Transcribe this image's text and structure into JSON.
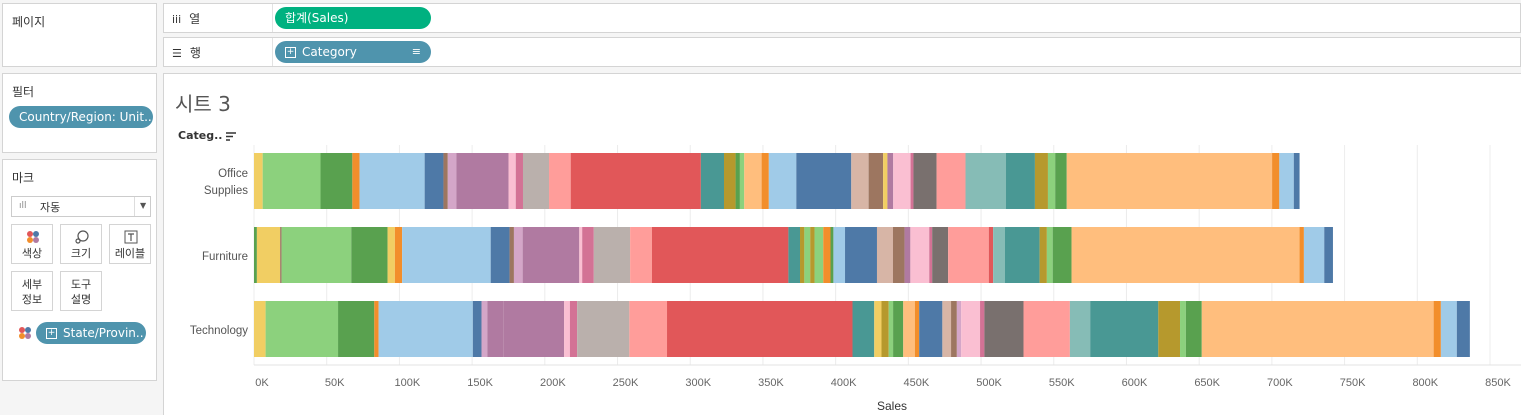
{
  "left": {
    "pages_title": "페이지",
    "filters_title": "필터",
    "filter_pill": "Country/Region: Unit..",
    "marks_title": "마크",
    "mark_type": "자동",
    "buttons": {
      "color": "색상",
      "size": "크기",
      "label": "레이블",
      "detail": [
        "세부",
        "정보"
      ],
      "tooltip": [
        "도구",
        "설명"
      ]
    },
    "state_pill": "State/Provin.."
  },
  "shelves": {
    "columns_label": "열",
    "columns_pill": "합계(Sales)",
    "rows_label": "행",
    "rows_pill": "Category"
  },
  "sheet": {
    "title": "시트 3",
    "category_header": "Categ..",
    "office_l1": "Office",
    "office_l2": "Supplies"
  },
  "colors": {
    "palette": [
      "#f1ce63",
      "#8cd17d",
      "#59a14f",
      "#f28e2b",
      "#a0cbe8",
      "#4e79a7",
      "#9d7660",
      "#d4a6c8",
      "#b07aa1",
      "#fabfd2",
      "#d37295",
      "#bab0ac",
      "#ff9d9a",
      "#e15759",
      "#499894",
      "#86bcb6",
      "#b6992d",
      "#ffbe7d",
      "#79706e",
      "#d7b5a6"
    ]
  },
  "chart_data": {
    "type": "bar",
    "orientation": "horizontal",
    "stacked": true,
    "stacked_by": "State/Province (color)",
    "categories": [
      "Office Supplies",
      "Furniture",
      "Technology"
    ],
    "totals": [
      719047,
      741999,
      836154
    ],
    "segments": {
      "Office Supplies": [
        [
          6,
          0
        ],
        [
          40,
          1
        ],
        [
          22,
          2
        ],
        [
          5,
          3
        ],
        [
          45,
          4
        ],
        [
          13,
          5
        ],
        [
          3,
          6
        ],
        [
          6,
          7
        ],
        [
          36,
          8
        ],
        [
          5,
          9
        ],
        [
          5,
          10
        ],
        [
          18,
          11
        ],
        [
          15,
          12
        ],
        [
          90,
          13
        ],
        [
          16,
          14
        ],
        [
          8,
          16
        ],
        [
          3,
          2
        ],
        [
          3,
          1
        ],
        [
          12,
          17
        ],
        [
          5,
          3
        ],
        [
          19,
          4
        ],
        [
          38,
          5
        ],
        [
          12,
          19
        ],
        [
          10,
          6
        ],
        [
          3,
          0
        ],
        [
          4,
          8
        ],
        [
          12,
          9
        ],
        [
          2,
          10
        ],
        [
          16,
          18
        ],
        [
          20,
          12
        ],
        [
          28,
          15
        ],
        [
          20,
          14
        ],
        [
          9,
          16
        ],
        [
          5,
          1
        ],
        [
          8,
          2
        ],
        [
          142,
          17
        ],
        [
          5,
          3
        ],
        [
          10,
          4
        ],
        [
          4,
          5
        ]
      ],
      "Furniture": [
        [
          2,
          2
        ],
        [
          16,
          0
        ],
        [
          1,
          6
        ],
        [
          48,
          1
        ],
        [
          25,
          2
        ],
        [
          5,
          0
        ],
        [
          5,
          3
        ],
        [
          61,
          4
        ],
        [
          13,
          5
        ],
        [
          3,
          6
        ],
        [
          6,
          7
        ],
        [
          39,
          8
        ],
        [
          2,
          9
        ],
        [
          8,
          10
        ],
        [
          25,
          11
        ],
        [
          15,
          12
        ],
        [
          94,
          13
        ],
        [
          8,
          14
        ],
        [
          3,
          16
        ],
        [
          4,
          1
        ],
        [
          3,
          16
        ],
        [
          6,
          1
        ],
        [
          5,
          3
        ],
        [
          2,
          2
        ],
        [
          8,
          4
        ],
        [
          22,
          5
        ],
        [
          11,
          19
        ],
        [
          8,
          6
        ],
        [
          4,
          8
        ],
        [
          13,
          9
        ],
        [
          2,
          10
        ],
        [
          11,
          18
        ],
        [
          28,
          12
        ],
        [
          3,
          13
        ],
        [
          8,
          15
        ],
        [
          24,
          14
        ],
        [
          5,
          16
        ],
        [
          4,
          1
        ],
        [
          13,
          2
        ],
        [
          157,
          17
        ],
        [
          3,
          3
        ],
        [
          14,
          4
        ],
        [
          6,
          5
        ]
      ],
      "Technology": [
        [
          8,
          0
        ],
        [
          50,
          1
        ],
        [
          25,
          2
        ],
        [
          3,
          3
        ],
        [
          65,
          4
        ],
        [
          6,
          5
        ],
        [
          4,
          7
        ],
        [
          11,
          8
        ],
        [
          42,
          8
        ],
        [
          4,
          9
        ],
        [
          5,
          10
        ],
        [
          36,
          11
        ],
        [
          26,
          12
        ],
        [
          128,
          13
        ],
        [
          15,
          14
        ],
        [
          5,
          0
        ],
        [
          5,
          16
        ],
        [
          3,
          1
        ],
        [
          7,
          2
        ],
        [
          8,
          17
        ],
        [
          3,
          3
        ],
        [
          16,
          5
        ],
        [
          6,
          19
        ],
        [
          4,
          6
        ],
        [
          3,
          7
        ],
        [
          13,
          9
        ],
        [
          3,
          10
        ],
        [
          27,
          18
        ],
        [
          32,
          12
        ],
        [
          14,
          15
        ],
        [
          47,
          14
        ],
        [
          15,
          16
        ],
        [
          4,
          1
        ],
        [
          11,
          2
        ],
        [
          160,
          17
        ],
        [
          5,
          3
        ],
        [
          11,
          4
        ],
        [
          9,
          5
        ]
      ]
    },
    "xlabel": "Sales",
    "ylabel": "Category",
    "xlim": [
      0,
      850000
    ],
    "ticks": [
      "0K",
      "50K",
      "100K",
      "150K",
      "200K",
      "250K",
      "300K",
      "350K",
      "400K",
      "450K",
      "500K",
      "550K",
      "600K",
      "650K",
      "700K",
      "750K",
      "800K",
      "850K"
    ]
  }
}
